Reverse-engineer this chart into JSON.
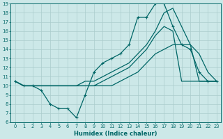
{
  "xlabel": "Humidex (Indice chaleur)",
  "bg_color": "#cce8e8",
  "line_color": "#006666",
  "grid_color": "#aacccc",
  "xlim": [
    -0.5,
    23.5
  ],
  "ylim": [
    6,
    19
  ],
  "xticks": [
    0,
    1,
    2,
    3,
    4,
    5,
    6,
    7,
    8,
    9,
    10,
    11,
    12,
    13,
    14,
    15,
    16,
    17,
    18,
    19,
    20,
    21,
    22,
    23
  ],
  "yticks": [
    6,
    7,
    8,
    9,
    10,
    11,
    12,
    13,
    14,
    15,
    16,
    17,
    18,
    19
  ],
  "series_marked": [
    10.5,
    10.0,
    10.0,
    9.5,
    8.0,
    7.5,
    7.5,
    6.5,
    9.0,
    11.5,
    12.5,
    13.0,
    13.5,
    14.5,
    17.5,
    17.5,
    19.0,
    19.0,
    16.5,
    14.5,
    14.0,
    11.5,
    10.5,
    10.5
  ],
  "series_top": [
    10.5,
    10.0,
    10.0,
    10.0,
    10.0,
    10.0,
    10.0,
    10.0,
    10.5,
    10.5,
    11.0,
    11.5,
    12.0,
    12.5,
    13.5,
    14.5,
    16.0,
    18.0,
    18.5,
    16.5,
    14.5,
    13.5,
    11.5,
    10.5
  ],
  "series_mid": [
    10.5,
    10.0,
    10.0,
    10.0,
    10.0,
    10.0,
    10.0,
    10.0,
    10.0,
    10.0,
    10.5,
    11.0,
    11.5,
    12.0,
    13.0,
    14.0,
    15.5,
    16.5,
    16.0,
    10.5,
    10.5,
    10.5,
    10.5,
    10.5
  ],
  "series_flat": [
    10.5,
    10.0,
    10.0,
    10.0,
    10.0,
    10.0,
    10.0,
    10.0,
    10.0,
    10.0,
    10.0,
    10.0,
    10.5,
    11.0,
    11.5,
    12.5,
    13.5,
    14.0,
    14.5,
    14.5,
    14.5,
    10.5,
    10.5,
    10.5
  ]
}
